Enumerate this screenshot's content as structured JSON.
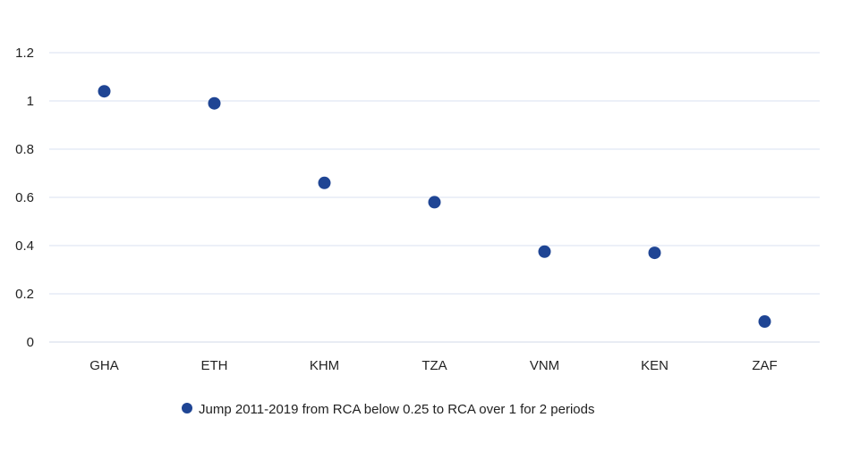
{
  "chart_data": {
    "type": "scatter",
    "categories": [
      "GHA",
      "ETH",
      "KHM",
      "TZA",
      "VNM",
      "KEN",
      "ZAF"
    ],
    "series": [
      {
        "name": "Jump 2011-2019 from RCA below 0.25 to RCA over 1 for 2 periods",
        "values": [
          1.04,
          0.99,
          0.66,
          0.58,
          0.375,
          0.37,
          0.085
        ]
      }
    ],
    "ylim": [
      0,
      1.2
    ],
    "yticks": [
      "0",
      "0.2",
      "0.4",
      "0.6",
      "0.8",
      "1",
      "1.2"
    ],
    "ytick_values": [
      0,
      0.2,
      0.4,
      0.6,
      0.8,
      1.0,
      1.2
    ],
    "grid": true,
    "legend_position": "bottom",
    "colors": {
      "marker": "#1f4594",
      "grid": "#d9e2f0",
      "axis": "#d0d8e8"
    }
  }
}
